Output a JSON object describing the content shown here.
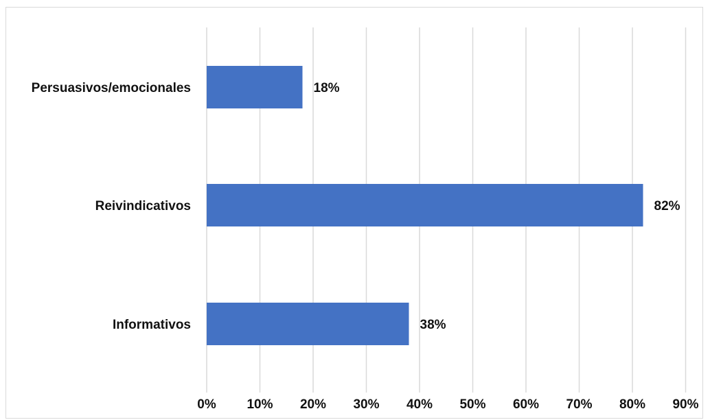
{
  "chart_data": {
    "type": "bar",
    "orientation": "horizontal",
    "categories": [
      "Persuasivos/emocionales",
      "Reivindicativos",
      "Informativos"
    ],
    "values": [
      18,
      82,
      38
    ],
    "data_labels": [
      "18%",
      "82%",
      "38%"
    ],
    "xlim": [
      0,
      90
    ],
    "x_ticks": [
      0,
      10,
      20,
      30,
      40,
      50,
      60,
      70,
      80,
      90
    ],
    "x_tick_labels": [
      "0%",
      "10%",
      "20%",
      "30%",
      "40%",
      "50%",
      "60%",
      "70%",
      "80%",
      "90%"
    ],
    "title": "",
    "xlabel": "",
    "ylabel": "",
    "grid": true,
    "legend": "none",
    "bar_color": "#4472C4",
    "grid_color": "#D9D9D9"
  }
}
